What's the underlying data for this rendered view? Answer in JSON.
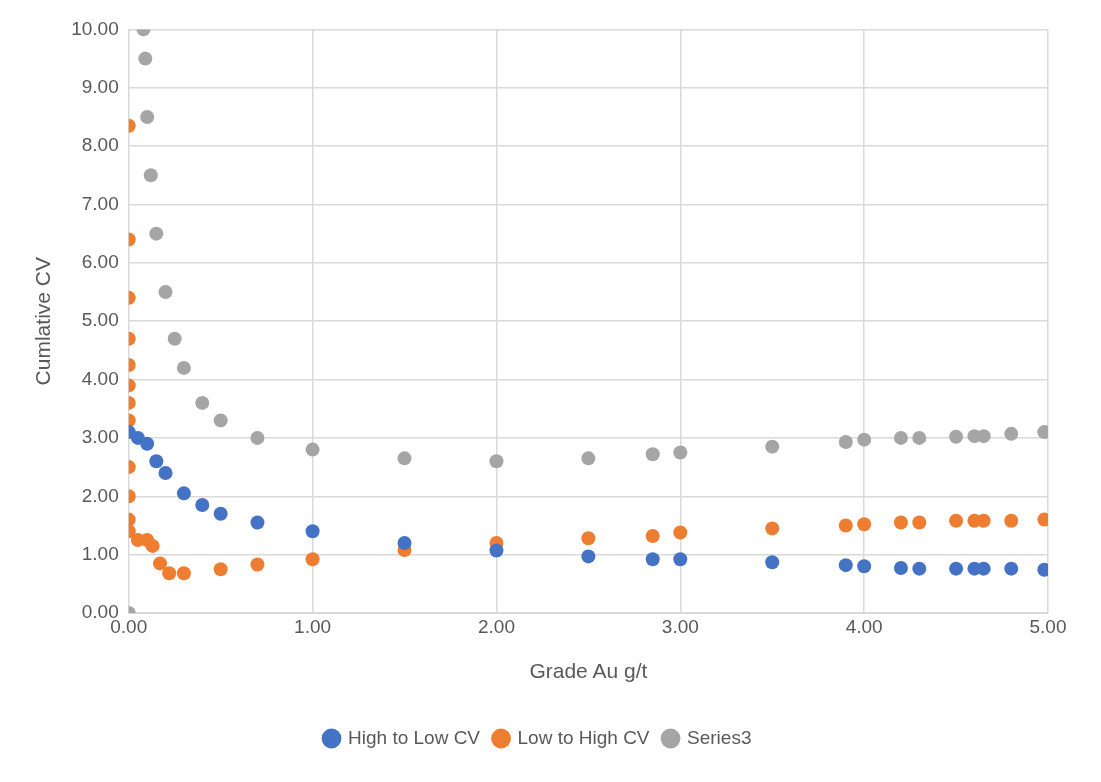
{
  "chart_data": {
    "type": "scatter",
    "xlabel": "Grade Au g/t",
    "ylabel": "Cumlative CV",
    "xlim": [
      0,
      5
    ],
    "ylim": [
      0,
      10
    ],
    "xticks": [
      {
        "value": 0,
        "label": "0.00"
      },
      {
        "value": 1,
        "label": "1.00"
      },
      {
        "value": 2,
        "label": "2.00"
      },
      {
        "value": 3,
        "label": "3.00"
      },
      {
        "value": 4,
        "label": "4.00"
      },
      {
        "value": 5,
        "label": "5.00"
      }
    ],
    "yticks": [
      {
        "value": 0,
        "label": "0.00"
      },
      {
        "value": 1,
        "label": "1.00"
      },
      {
        "value": 2,
        "label": "2.00"
      },
      {
        "value": 3,
        "label": "3.00"
      },
      {
        "value": 4,
        "label": "4.00"
      },
      {
        "value": 5,
        "label": "5.00"
      },
      {
        "value": 6,
        "label": "6.00"
      },
      {
        "value": 7,
        "label": "7.00"
      },
      {
        "value": 8,
        "label": "8.00"
      },
      {
        "value": 9,
        "label": "9.00"
      },
      {
        "value": 10,
        "label": "10.00"
      }
    ],
    "grid": true,
    "legend": "bottom",
    "marker": "circle",
    "series": [
      {
        "name": "High to Low CV",
        "color": "#4472c4",
        "x": [
          0,
          0.05,
          0.1,
          0.15,
          0.2,
          0.3,
          0.4,
          0.5,
          0.7,
          1.0,
          1.5,
          2.0,
          2.5,
          2.85,
          3.0,
          3.5,
          3.9,
          4.0,
          4.2,
          4.3,
          4.5,
          4.6,
          4.65,
          4.8,
          4.98
        ],
        "values": [
          3.1,
          3.0,
          2.9,
          2.6,
          2.4,
          2.05,
          1.85,
          1.7,
          1.55,
          1.4,
          1.2,
          1.07,
          0.97,
          0.92,
          0.92,
          0.87,
          0.82,
          0.8,
          0.77,
          0.76,
          0.76,
          0.76,
          0.76,
          0.76,
          0.74
        ]
      },
      {
        "name": "Low to High CV",
        "color": "#ed7d31",
        "x": [
          0,
          0,
          0,
          0,
          0,
          0,
          0,
          0,
          0,
          0,
          0,
          0,
          0.05,
          0.1,
          0.13,
          0.17,
          0.22,
          0.3,
          0.5,
          0.7,
          1.0,
          1.5,
          2.0,
          2.5,
          2.85,
          3.0,
          3.5,
          3.9,
          4.0,
          4.2,
          4.3,
          4.5,
          4.6,
          4.65,
          4.8,
          4.98
        ],
        "values": [
          8.35,
          6.4,
          5.4,
          4.7,
          4.25,
          3.9,
          3.6,
          3.3,
          2.5,
          2.0,
          1.6,
          1.4,
          1.25,
          1.25,
          1.15,
          0.85,
          0.68,
          0.68,
          0.75,
          0.83,
          0.92,
          1.08,
          1.2,
          1.28,
          1.32,
          1.38,
          1.45,
          1.5,
          1.52,
          1.55,
          1.55,
          1.58,
          1.58,
          1.58,
          1.58,
          1.6
        ]
      },
      {
        "name": "Series3",
        "color": "#a5a5a5",
        "x": [
          0,
          0.08,
          0.09,
          0.1,
          0.12,
          0.15,
          0.2,
          0.25,
          0.3,
          0.4,
          0.5,
          0.7,
          1.0,
          1.5,
          2.0,
          2.5,
          2.85,
          3.0,
          3.5,
          3.9,
          4.0,
          4.2,
          4.3,
          4.5,
          4.6,
          4.65,
          4.8,
          4.98
        ],
        "values": [
          0,
          10.0,
          9.5,
          8.5,
          7.5,
          6.5,
          5.5,
          4.7,
          4.2,
          3.6,
          3.3,
          3.0,
          2.8,
          2.65,
          2.6,
          2.65,
          2.72,
          2.75,
          2.85,
          2.93,
          2.97,
          3.0,
          3.0,
          3.02,
          3.03,
          3.03,
          3.07,
          3.1
        ]
      }
    ]
  }
}
